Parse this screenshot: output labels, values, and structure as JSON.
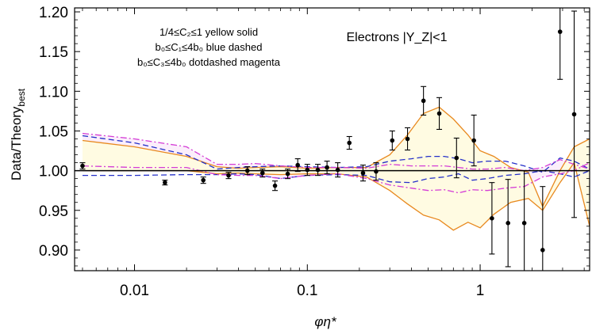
{
  "chart_data": {
    "type": "scatter",
    "title": "",
    "xlabel": "φη*",
    "ylabel": "Data/Theory",
    "ylabel_sub": "best",
    "x_scale": "log",
    "xlim": [
      0.0045,
      4.3
    ],
    "ylim": [
      0.874,
      1.205
    ],
    "x_ticks": [
      0.01,
      0.1,
      1
    ],
    "x_tick_labels": [
      "0.01",
      "0.1",
      "1"
    ],
    "y_ticks": [
      0.9,
      0.95,
      1.0,
      1.05,
      1.1,
      1.15,
      1.2
    ],
    "y_tick_labels": [
      "0.90",
      "0.95",
      "1.00",
      "1.05",
      "1.10",
      "1.15",
      "1.20"
    ],
    "grid": false,
    "reference_line": 1.0,
    "legend_lines": [
      "1/4≤C₂≤1 yellow solid",
      "b₀≤C₁≤4b₀ blue dashed",
      "b₀≤C₃≤4b₀ dotdashed magenta"
    ],
    "annotation": "Electrons  |Y_Z|<1",
    "colors": {
      "yellow_band": "#e8891f",
      "yellow_fill": "#fffbe2",
      "blue": "#2530c8",
      "magenta": "#d43cd6",
      "magenta_fill": "#fbeefb",
      "points": "#000000"
    },
    "points": [
      {
        "x": 0.005,
        "y": 1.006,
        "err": 0.004
      },
      {
        "x": 0.015,
        "y": 0.985,
        "err": 0.003
      },
      {
        "x": 0.025,
        "y": 0.988,
        "err": 0.004
      },
      {
        "x": 0.035,
        "y": 0.994,
        "err": 0.004
      },
      {
        "x": 0.045,
        "y": 1.0,
        "err": 0.005
      },
      {
        "x": 0.055,
        "y": 0.997,
        "err": 0.005
      },
      {
        "x": 0.065,
        "y": 0.981,
        "err": 0.006
      },
      {
        "x": 0.077,
        "y": 0.996,
        "err": 0.006
      },
      {
        "x": 0.088,
        "y": 1.007,
        "err": 0.008
      },
      {
        "x": 0.1,
        "y": 1.001,
        "err": 0.007
      },
      {
        "x": 0.115,
        "y": 1.001,
        "err": 0.007
      },
      {
        "x": 0.13,
        "y": 1.004,
        "err": 0.008
      },
      {
        "x": 0.15,
        "y": 1.001,
        "err": 0.009
      },
      {
        "x": 0.175,
        "y": 1.035,
        "err": 0.008
      },
      {
        "x": 0.21,
        "y": 0.997,
        "err": 0.01
      },
      {
        "x": 0.25,
        "y": 0.999,
        "err": 0.011
      },
      {
        "x": 0.31,
        "y": 1.038,
        "err": 0.012
      },
      {
        "x": 0.38,
        "y": 1.04,
        "err": 0.014
      },
      {
        "x": 0.47,
        "y": 1.088,
        "err": 0.018
      },
      {
        "x": 0.58,
        "y": 1.072,
        "err": 0.02
      },
      {
        "x": 0.73,
        "y": 1.016,
        "err": 0.025
      },
      {
        "x": 0.92,
        "y": 1.038,
        "err": 0.032
      },
      {
        "x": 1.17,
        "y": 0.94,
        "err": 0.045
      },
      {
        "x": 1.45,
        "y": 0.934,
        "err": 0.055
      },
      {
        "x": 1.8,
        "y": 0.934,
        "err": 0.066
      },
      {
        "x": 2.3,
        "y": 0.9,
        "err": 0.08
      },
      {
        "x": 2.9,
        "y": 1.175,
        "err": 0.06
      },
      {
        "x": 3.5,
        "y": 1.071,
        "err": 0.13
      }
    ],
    "series": [
      {
        "name": "yellow solid upper",
        "x": [
          0.005,
          0.01,
          0.02,
          0.03,
          0.04,
          0.05,
          0.07,
          0.1,
          0.15,
          0.22,
          0.3,
          0.38,
          0.47,
          0.58,
          0.7,
          0.85,
          1.0,
          1.2,
          1.5,
          1.9,
          2.3,
          2.9,
          3.5,
          4.3
        ],
        "y": [
          1.038,
          1.03,
          1.018,
          1.005,
          1.003,
          1.004,
          1.005,
          1.003,
          1.004,
          1.004,
          1.02,
          1.045,
          1.072,
          1.08,
          1.065,
          1.045,
          1.025,
          1.018,
          1.004,
          0.998,
          0.955,
          1.0,
          1.03,
          1.04
        ]
      },
      {
        "name": "yellow solid lower",
        "x": [
          0.005,
          0.01,
          0.02,
          0.03,
          0.04,
          0.05,
          0.07,
          0.1,
          0.15,
          0.22,
          0.3,
          0.38,
          0.47,
          0.58,
          0.7,
          0.85,
          1.0,
          1.2,
          1.5,
          1.9,
          2.3,
          2.9,
          3.5,
          4.3
        ],
        "y": [
          1.0,
          1.0,
          1.0,
          0.996,
          0.997,
          0.996,
          0.995,
          0.996,
          0.996,
          0.992,
          0.975,
          0.958,
          0.944,
          0.938,
          0.925,
          0.935,
          0.928,
          0.945,
          0.96,
          0.965,
          0.95,
          0.985,
          1.01,
          0.93
        ]
      },
      {
        "name": "blue dashed upper",
        "x": [
          0.005,
          0.01,
          0.02,
          0.03,
          0.04,
          0.05,
          0.07,
          0.1,
          0.15,
          0.22,
          0.3,
          0.4,
          0.5,
          0.62,
          0.75,
          0.9,
          1.1,
          1.4,
          1.8,
          2.3,
          2.9,
          3.5,
          4.3
        ],
        "y": [
          1.044,
          1.035,
          1.02,
          1.002,
          1.004,
          1.005,
          1.006,
          1.005,
          1.004,
          1.005,
          1.012,
          1.015,
          1.018,
          1.018,
          1.015,
          1.01,
          1.012,
          1.012,
          1.006,
          0.998,
          1.016,
          1.012,
          1.002
        ]
      },
      {
        "name": "blue dashed lower",
        "x": [
          0.005,
          0.01,
          0.02,
          0.03,
          0.04,
          0.05,
          0.07,
          0.1,
          0.15,
          0.22,
          0.3,
          0.4,
          0.5,
          0.62,
          0.75,
          0.9,
          1.1,
          1.4,
          1.8,
          2.3,
          2.9,
          3.5,
          4.3
        ],
        "y": [
          0.994,
          0.994,
          0.995,
          0.995,
          0.996,
          0.995,
          0.99,
          0.994,
          0.995,
          0.994,
          0.986,
          0.985,
          0.99,
          0.992,
          0.996,
          0.988,
          0.99,
          0.994,
          0.996,
          1.0,
          0.996,
          0.992,
          1.0
        ]
      },
      {
        "name": "magenta dotdashed upper",
        "x": [
          0.005,
          0.01,
          0.02,
          0.03,
          0.04,
          0.05,
          0.07,
          0.1,
          0.15,
          0.22,
          0.3,
          0.4,
          0.5,
          0.62,
          0.75,
          0.9,
          1.1,
          1.4,
          1.8,
          2.3,
          2.9,
          3.5,
          4.3
        ],
        "y": [
          1.047,
          1.04,
          1.03,
          1.008,
          1.008,
          1.009,
          1.006,
          1.004,
          1.004,
          1.003,
          1.008,
          1.006,
          1.006,
          1.006,
          1.004,
          1.002,
          1.002,
          1.004,
          1.0,
          1.004,
          1.014,
          1.008,
          1.002
        ]
      },
      {
        "name": "magenta dotdashed lower",
        "x": [
          0.005,
          0.01,
          0.02,
          0.03,
          0.04,
          0.05,
          0.07,
          0.1,
          0.15,
          0.22,
          0.3,
          0.4,
          0.5,
          0.62,
          0.75,
          0.9,
          1.1,
          1.4,
          1.8,
          2.3,
          2.9,
          3.5,
          4.3
        ],
        "y": [
          1.006,
          1.004,
          1.004,
          0.995,
          0.994,
          0.994,
          0.99,
          0.994,
          0.996,
          0.99,
          0.982,
          0.978,
          0.975,
          0.976,
          0.972,
          0.976,
          0.975,
          0.978,
          0.98,
          0.992,
          0.996,
          1.0,
          1.01
        ]
      }
    ]
  }
}
